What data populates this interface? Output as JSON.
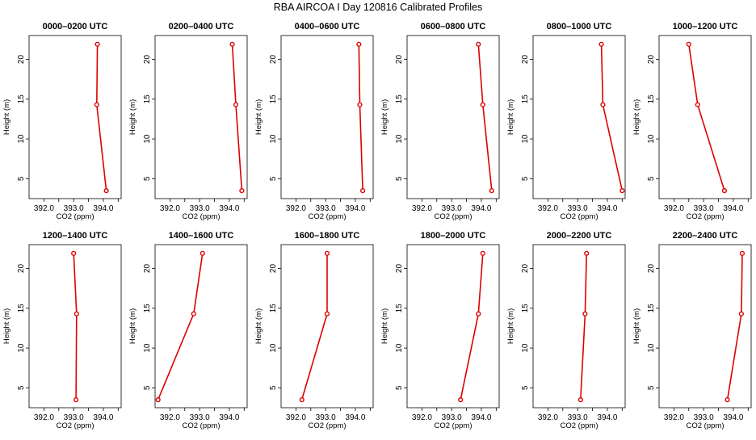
{
  "title": "RBA AIRCOA I  Day 120816  Calibrated Profiles",
  "colors": {
    "line": "#dd0000",
    "axis": "#000000",
    "background": "#ffffff"
  },
  "chart_data": [
    {
      "type": "line",
      "title": "0000–0200 UTC",
      "xlabel": "CO2 (ppm)",
      "ylabel": "Height (m)",
      "x": [
        393.8,
        393.78,
        394.1
      ],
      "y": [
        21.9,
        14.3,
        3.5
      ]
    },
    {
      "type": "line",
      "title": "0200–0400 UTC",
      "xlabel": "CO2 (ppm)",
      "ylabel": "Height (m)",
      "x": [
        394.1,
        394.22,
        394.42
      ],
      "y": [
        21.9,
        14.3,
        3.5
      ]
    },
    {
      "type": "line",
      "title": "0400–0600 UTC",
      "xlabel": "CO2 (ppm)",
      "ylabel": "Height (m)",
      "x": [
        394.12,
        394.15,
        394.25
      ],
      "y": [
        21.9,
        14.3,
        3.5
      ]
    },
    {
      "type": "line",
      "title": "0600–0800 UTC",
      "xlabel": "CO2 (ppm)",
      "ylabel": "Height (m)",
      "x": [
        393.9,
        394.05,
        394.35
      ],
      "y": [
        21.9,
        14.3,
        3.5
      ]
    },
    {
      "type": "line",
      "title": "0800–1000 UTC",
      "xlabel": "CO2 (ppm)",
      "ylabel": "Height (m)",
      "x": [
        393.8,
        393.85,
        394.5
      ],
      "y": [
        21.9,
        14.3,
        3.5
      ]
    },
    {
      "type": "line",
      "title": "1000–1200 UTC",
      "xlabel": "CO2 (ppm)",
      "ylabel": "Height (m)",
      "x": [
        392.5,
        392.8,
        393.7
      ],
      "y": [
        21.9,
        14.3,
        3.5
      ]
    },
    {
      "type": "line",
      "title": "1200–1400 UTC",
      "xlabel": "CO2 (ppm)",
      "ylabel": "Height (m)",
      "x": [
        393.0,
        393.1,
        393.08
      ],
      "y": [
        21.9,
        14.3,
        3.5
      ]
    },
    {
      "type": "line",
      "title": "1400–1600 UTC",
      "xlabel": "CO2 (ppm)",
      "ylabel": "Height (m)",
      "x": [
        393.1,
        392.8,
        391.6
      ],
      "y": [
        21.9,
        14.3,
        3.5
      ]
    },
    {
      "type": "line",
      "title": "1600–1800 UTC",
      "xlabel": "CO2 (ppm)",
      "ylabel": "Height (m)",
      "x": [
        393.05,
        393.05,
        392.2
      ],
      "y": [
        21.9,
        14.3,
        3.5
      ]
    },
    {
      "type": "line",
      "title": "1800–2000 UTC",
      "xlabel": "CO2 (ppm)",
      "ylabel": "Height (m)",
      "x": [
        394.05,
        393.9,
        393.3
      ],
      "y": [
        21.9,
        14.3,
        3.5
      ]
    },
    {
      "type": "line",
      "title": "2000–2200 UTC",
      "xlabel": "CO2 (ppm)",
      "ylabel": "Height (m)",
      "x": [
        393.3,
        393.25,
        393.1
      ],
      "y": [
        21.9,
        14.3,
        3.5
      ]
    },
    {
      "type": "line",
      "title": "2200–2400 UTC",
      "xlabel": "CO2 (ppm)",
      "ylabel": "Height (m)",
      "x": [
        394.3,
        394.27,
        393.8
      ],
      "y": [
        21.9,
        14.3,
        3.5
      ]
    }
  ],
  "axes": {
    "xlim": [
      391.5,
      394.6
    ],
    "ylim": [
      2.5,
      23.0
    ],
    "xticks": [
      392.0,
      392.5,
      393.0,
      393.5,
      394.0,
      394.5
    ],
    "xticklabels": [
      "392.0",
      "",
      "393.0",
      "",
      "394.0",
      ""
    ],
    "yticks": [
      5,
      10,
      15,
      20
    ],
    "yticklabels": [
      "5",
      "10",
      "15",
      "20"
    ],
    "grid": false
  }
}
